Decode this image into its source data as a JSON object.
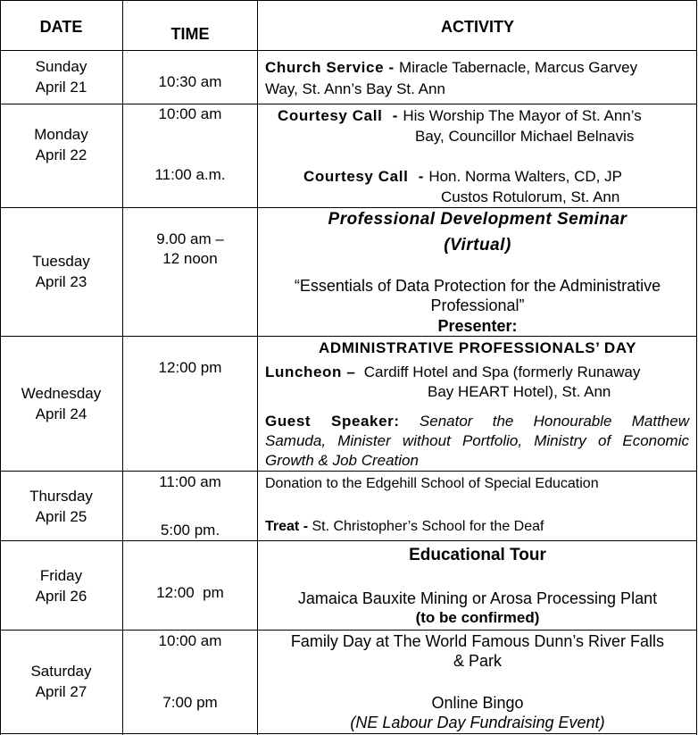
{
  "headers": {
    "date": "DATE",
    "time": "TIME",
    "activity": "ACTIVITY"
  },
  "rows": [
    {
      "day": "Sunday",
      "date": "April 21",
      "times": [
        "10:30 am"
      ],
      "activity": {
        "label": "Church Service - ",
        "line1": "Miracle Tabernacle, Marcus Garvey",
        "line2": "Way, St. Ann’s Bay St. Ann"
      }
    },
    {
      "day": "Monday",
      "date": "April 22",
      "times": [
        "10:00 am",
        "11:00 a.m."
      ],
      "activity": {
        "label1": "Courtesy Call",
        "dash1": " - ",
        "text1a": "His Worship The Mayor of St. Ann’s",
        "text1b": "Bay, Councillor Michael Belnavis",
        "label2": "Courtesy Call",
        "dash2": " - ",
        "text2a": "Hon. Norma Walters, CD, JP",
        "text2b": "Custos Rotulorum, St. Ann"
      }
    },
    {
      "day": "Tuesday",
      "date": "April 23",
      "times": [
        "9.00 am –",
        "12 noon"
      ],
      "activity": {
        "title1": "Professional Development Seminar",
        "title2": "(Virtual)",
        "topic1": "“Essentials of Data Protection for the Administrative",
        "topic2": "Professional”",
        "presenter": "Presenter:"
      }
    },
    {
      "day": "Wednesday",
      "date": "April 24",
      "times": [
        "12:00 pm"
      ],
      "activity": {
        "heading": "ADMINISTRATIVE PROFESSIONALS’ DAY",
        "label1": "Luncheon – ",
        "text1a": "Cardiff Hotel and Spa (formerly Runaway",
        "text1b": "Bay HEART Hotel), St. Ann",
        "label2": "Guest Speaker:",
        "text2a": "Senator the Honourable Matthew",
        "text2b": "Samuda, Minister without Portfolio, Ministry of Economic",
        "text2c": "Growth & Job Creation"
      }
    },
    {
      "day": "Thursday",
      "date": "April 25",
      "times": [
        "11:00 am",
        "5:00 pm."
      ],
      "activity": {
        "line1": "Donation to the Edgehill School of Special Education",
        "label2": "Treat - ",
        "line2": "St. Christopher’s School for the Deaf"
      }
    },
    {
      "day": "Friday",
      "date": "April 26",
      "times": [
        "12:00  pm"
      ],
      "activity": {
        "title": "Educational Tour",
        "line1": "Jamaica Bauxite Mining or Arosa Processing Plant",
        "line2": "(to be confirmed)"
      }
    },
    {
      "day": "Saturday",
      "date": "April 27",
      "times": [
        "10:00 am",
        "7:00 pm"
      ],
      "activity": {
        "line1": "Family Day at The World Famous Dunn’s River Falls",
        "line2": "& Park",
        "line3": "Online Bingo",
        "line4": "(NE Labour Day Fundraising Event)"
      }
    }
  ]
}
